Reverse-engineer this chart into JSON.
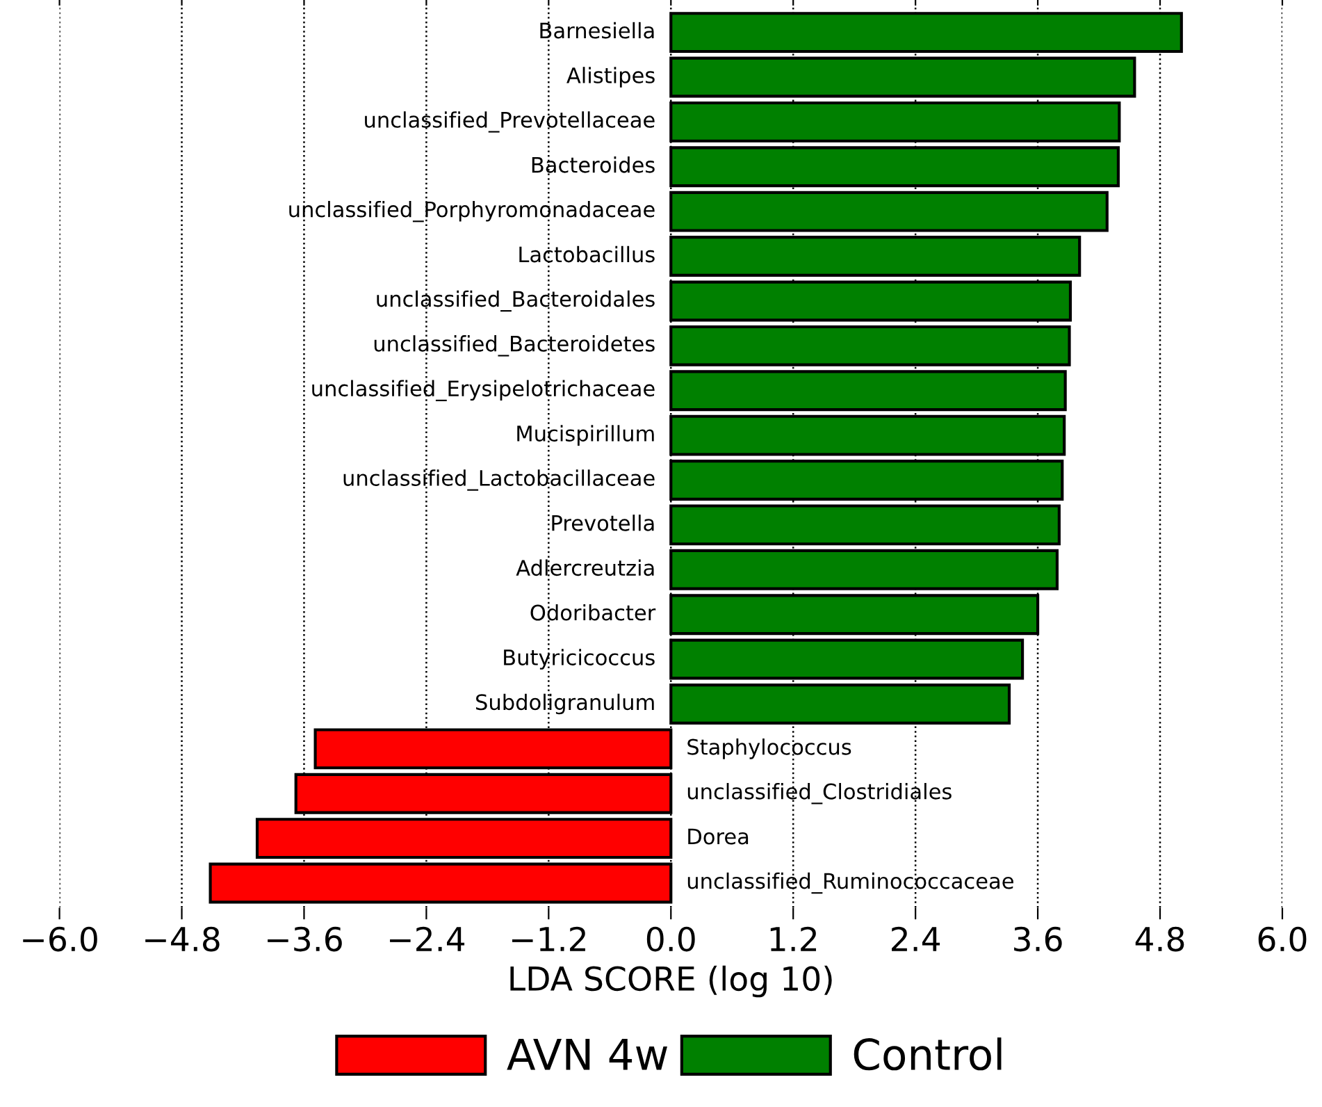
{
  "chart_data": {
    "type": "bar",
    "orientation": "horizontal",
    "xlabel": "LDA SCORE (log 10)",
    "categories": [
      "Barnesiella",
      "Alistipes",
      "unclassified_Prevotellaceae",
      "Bacteroides",
      "unclassified_Porphyromonadaceae",
      "Lactobacillus",
      "unclassified_Bacteroidales",
      "unclassified_Bacteroidetes",
      "unclassified_Erysipelotrichaceae",
      "Mucispirillum",
      "unclassified_Lactobacillaceae",
      "Prevotella",
      "Adlercreutzia",
      "Odoribacter",
      "Butyricicoccus",
      "Subdoligranulum",
      "Staphylococcus",
      "unclassified_Clostridiales",
      "Dorea",
      "unclassified_Ruminococcaceae"
    ],
    "series": [
      {
        "name": "AVN 4w",
        "color": "#ff0000",
        "values": [
          null,
          null,
          null,
          null,
          null,
          null,
          null,
          null,
          null,
          null,
          null,
          null,
          null,
          null,
          null,
          null,
          -3.49,
          -3.68,
          -4.06,
          -4.52
        ]
      },
      {
        "name": "Control",
        "color": "#008000",
        "values": [
          5.01,
          4.55,
          4.4,
          4.39,
          4.28,
          4.01,
          3.92,
          3.91,
          3.87,
          3.86,
          3.84,
          3.81,
          3.79,
          3.6,
          3.45,
          3.32,
          null,
          null,
          null,
          null
        ]
      }
    ],
    "xlim": [
      -6.0,
      6.0
    ],
    "xticks": [
      {
        "value": -6.0,
        "label": "−6.0"
      },
      {
        "value": -4.8,
        "label": "−4.8"
      },
      {
        "value": -3.6,
        "label": "−3.6"
      },
      {
        "value": -2.4,
        "label": "−2.4"
      },
      {
        "value": -1.2,
        "label": "−1.2"
      },
      {
        "value": 0,
        "label": "0.0"
      },
      {
        "value": 1.2,
        "label": "1.2"
      },
      {
        "value": 2.4,
        "label": "2.4"
      },
      {
        "value": 3.6,
        "label": "3.6"
      },
      {
        "value": 4.8,
        "label": "4.8"
      },
      {
        "value": 6.0,
        "label": "6.0"
      }
    ],
    "grid": "x",
    "legend": "bottom"
  }
}
